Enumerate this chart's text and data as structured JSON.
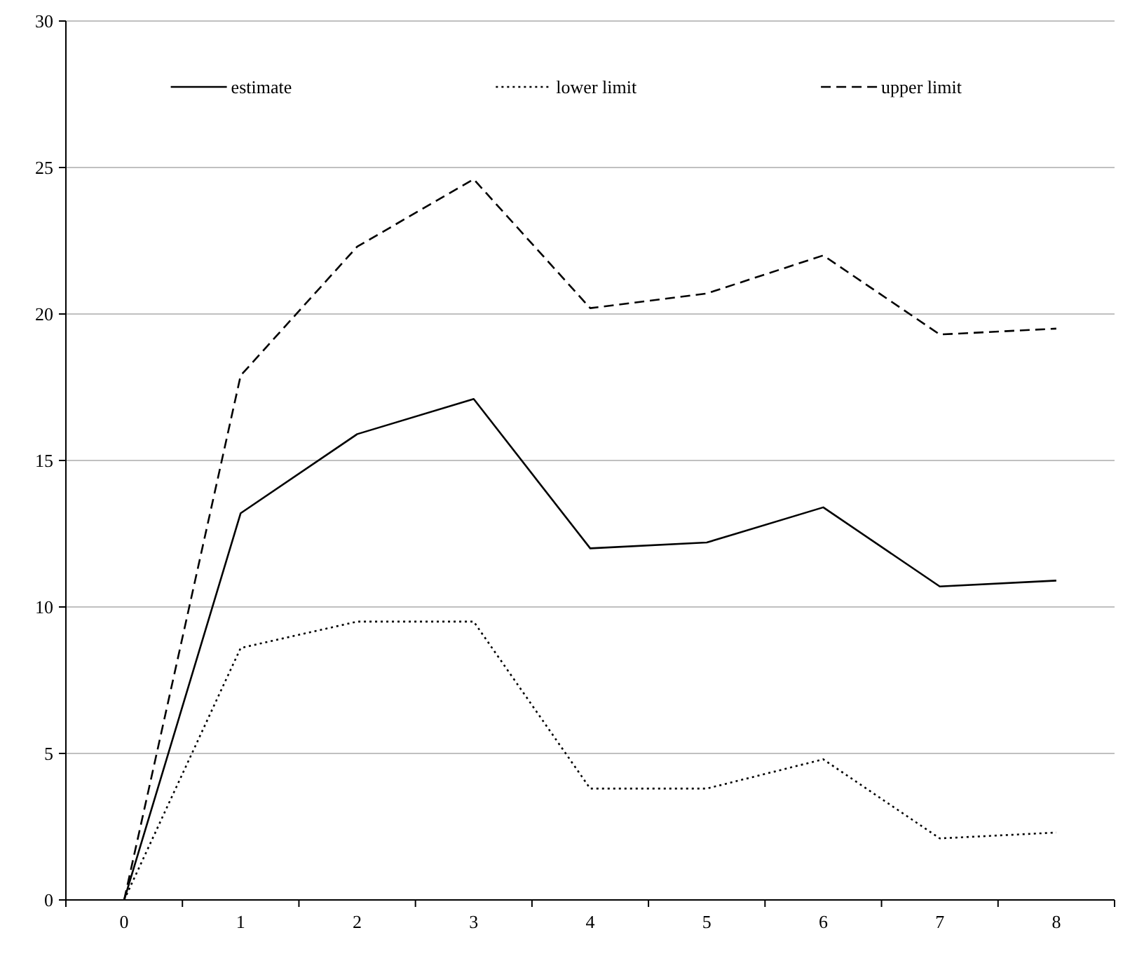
{
  "chart_data": {
    "type": "line",
    "categories": [
      "0",
      "1",
      "2",
      "3",
      "4",
      "5",
      "6",
      "7",
      "8"
    ],
    "series": [
      {
        "name": "estimate",
        "color": "#000000",
        "line_style": "solid",
        "values": [
          0,
          13.2,
          15.9,
          17.1,
          12.0,
          12.2,
          13.4,
          10.7,
          10.9
        ]
      },
      {
        "name": "lower limit",
        "color": "#000000",
        "line_style": "dotted",
        "values": [
          0,
          8.6,
          9.5,
          9.5,
          3.8,
          3.8,
          4.8,
          2.1,
          2.3
        ]
      },
      {
        "name": "upper limit",
        "color": "#000000",
        "line_style": "dashed",
        "values": [
          0,
          17.9,
          22.3,
          24.6,
          20.2,
          20.7,
          22.0,
          19.3,
          19.5
        ]
      }
    ],
    "ylim": [
      0,
      30
    ],
    "yticks": [
      0,
      5,
      10,
      15,
      20,
      25,
      30
    ],
    "grid": "y",
    "legend": "top"
  }
}
